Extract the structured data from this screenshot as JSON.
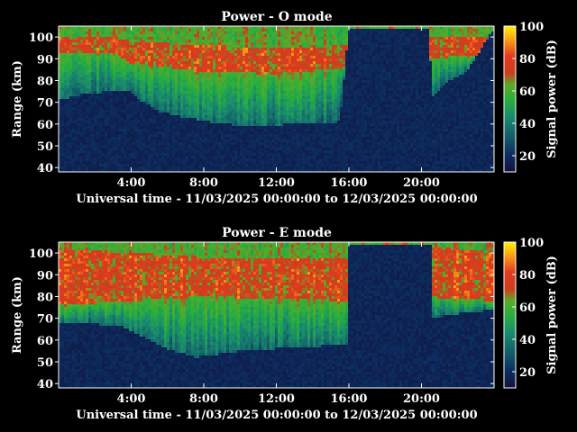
{
  "chart_data": [
    {
      "type": "heatmap",
      "title": "Power - O mode",
      "xlabel": "Universal time - 11/03/2025 00:00:00 to 12/03/2025 00:00:00",
      "ylabel": "Range (km)",
      "colorbar_label": "Signal power (dB)",
      "x_range_hours": [
        0,
        24
      ],
      "x_ticks": [
        "4:00",
        "8:00",
        "12:00",
        "16:00",
        "20:00"
      ],
      "x_tick_hours": [
        4,
        8,
        12,
        16,
        20
      ],
      "ylim": [
        38,
        105
      ],
      "y_ticks": [
        40,
        50,
        60,
        70,
        80,
        90,
        100
      ],
      "colorbar_range": [
        10,
        100
      ],
      "colorbar_ticks": [
        20,
        40,
        60,
        80,
        100
      ],
      "features": {
        "noise_floor_top_km": [
          [
            0.0,
            71
          ],
          [
            0.5,
            72
          ],
          [
            1.5,
            74
          ],
          [
            3.0,
            75
          ],
          [
            4.0,
            75
          ],
          [
            4.5,
            71
          ],
          [
            5.5,
            66
          ],
          [
            7.0,
            63
          ],
          [
            9.0,
            60
          ],
          [
            11.0,
            59
          ],
          [
            13.0,
            60
          ],
          [
            15.5,
            61
          ],
          [
            16.0,
            104
          ],
          [
            20.4,
            104
          ],
          [
            20.6,
            72
          ],
          [
            21.5,
            80
          ],
          [
            22.5,
            84
          ],
          [
            24.0,
            104
          ]
        ],
        "peak_layer_top_km": [
          [
            0,
            100
          ],
          [
            3,
            100
          ],
          [
            4,
            98
          ],
          [
            8,
            96
          ],
          [
            12,
            95
          ],
          [
            16,
            96
          ],
          [
            20,
            100
          ],
          [
            24,
            100
          ]
        ],
        "peak_layer_bottom_km": [
          [
            0,
            92
          ],
          [
            3,
            93
          ],
          [
            4,
            88
          ],
          [
            8,
            84
          ],
          [
            12,
            83
          ],
          [
            16,
            86
          ],
          [
            20,
            90
          ],
          [
            24,
            92
          ]
        ]
      }
    },
    {
      "type": "heatmap",
      "title": "Power - E mode",
      "xlabel": "Universal time - 11/03/2025 00:00:00 to 12/03/2025 00:00:00",
      "ylabel": "Range (km)",
      "colorbar_label": "Signal power (dB)",
      "x_range_hours": [
        0,
        24
      ],
      "x_ticks": [
        "4:00",
        "8:00",
        "12:00",
        "16:00",
        "20:00"
      ],
      "x_tick_hours": [
        4,
        8,
        12,
        16,
        20
      ],
      "ylim": [
        38,
        105
      ],
      "y_ticks": [
        40,
        50,
        60,
        70,
        80,
        90,
        100
      ],
      "colorbar_range": [
        10,
        100
      ],
      "colorbar_ticks": [
        20,
        40,
        60,
        80,
        100
      ],
      "features": {
        "noise_floor_top_km": [
          [
            0.0,
            68
          ],
          [
            1.0,
            68
          ],
          [
            2.5,
            67
          ],
          [
            3.5,
            66
          ],
          [
            4.5,
            62
          ],
          [
            6.0,
            56
          ],
          [
            7.5,
            52
          ],
          [
            10.0,
            55
          ],
          [
            12.0,
            56
          ],
          [
            14.0,
            57
          ],
          [
            15.9,
            58
          ],
          [
            16.0,
            104
          ],
          [
            20.5,
            104
          ],
          [
            20.6,
            70
          ],
          [
            22.0,
            72
          ],
          [
            24.0,
            74
          ]
        ],
        "peak_layer_top_km": [
          [
            0,
            102
          ],
          [
            4,
            100
          ],
          [
            8,
            98
          ],
          [
            12,
            97
          ],
          [
            16,
            98
          ],
          [
            18,
            105
          ],
          [
            20,
            104
          ],
          [
            24,
            100
          ]
        ],
        "peak_layer_bottom_km": [
          [
            0,
            76
          ],
          [
            4,
            78
          ],
          [
            8,
            80
          ],
          [
            12,
            79
          ],
          [
            16,
            78
          ],
          [
            18,
            84
          ],
          [
            20,
            80
          ],
          [
            24,
            78
          ]
        ]
      }
    }
  ]
}
